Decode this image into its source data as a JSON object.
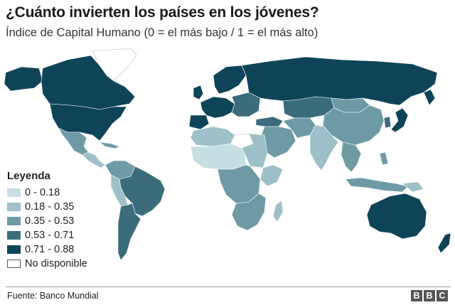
{
  "title": "¿Cuánto invierten los países en los jóvenes?",
  "subtitle": "Índice de Capital Humano (0 = el más bajo / 1 = el más alto)",
  "legend": {
    "title": "Leyenda",
    "items": [
      {
        "label": "0 - 0.18",
        "color": "#c7dfe2"
      },
      {
        "label": "0.18 - 0.35",
        "color": "#9ec0c8"
      },
      {
        "label": "0.35 - 0.53",
        "color": "#6e9aa6"
      },
      {
        "label": "0.53 - 0.71",
        "color": "#3a6c7c"
      },
      {
        "label": "0.71 - 0.88",
        "color": "#0e4458"
      },
      {
        "label": "No disponible",
        "color": "#ffffff"
      }
    ]
  },
  "colors": {
    "darkest": "#0e4458",
    "dark": "#3a6c7c",
    "mid": "#6e9aa6",
    "light": "#9ec0c8",
    "lightest": "#c7dfe2",
    "none": "#ffffff",
    "border": "#ffffff"
  },
  "footer": {
    "source": "Fuente: Banco Mundial"
  },
  "logo": {
    "letters": [
      "B",
      "B",
      "C"
    ]
  }
}
